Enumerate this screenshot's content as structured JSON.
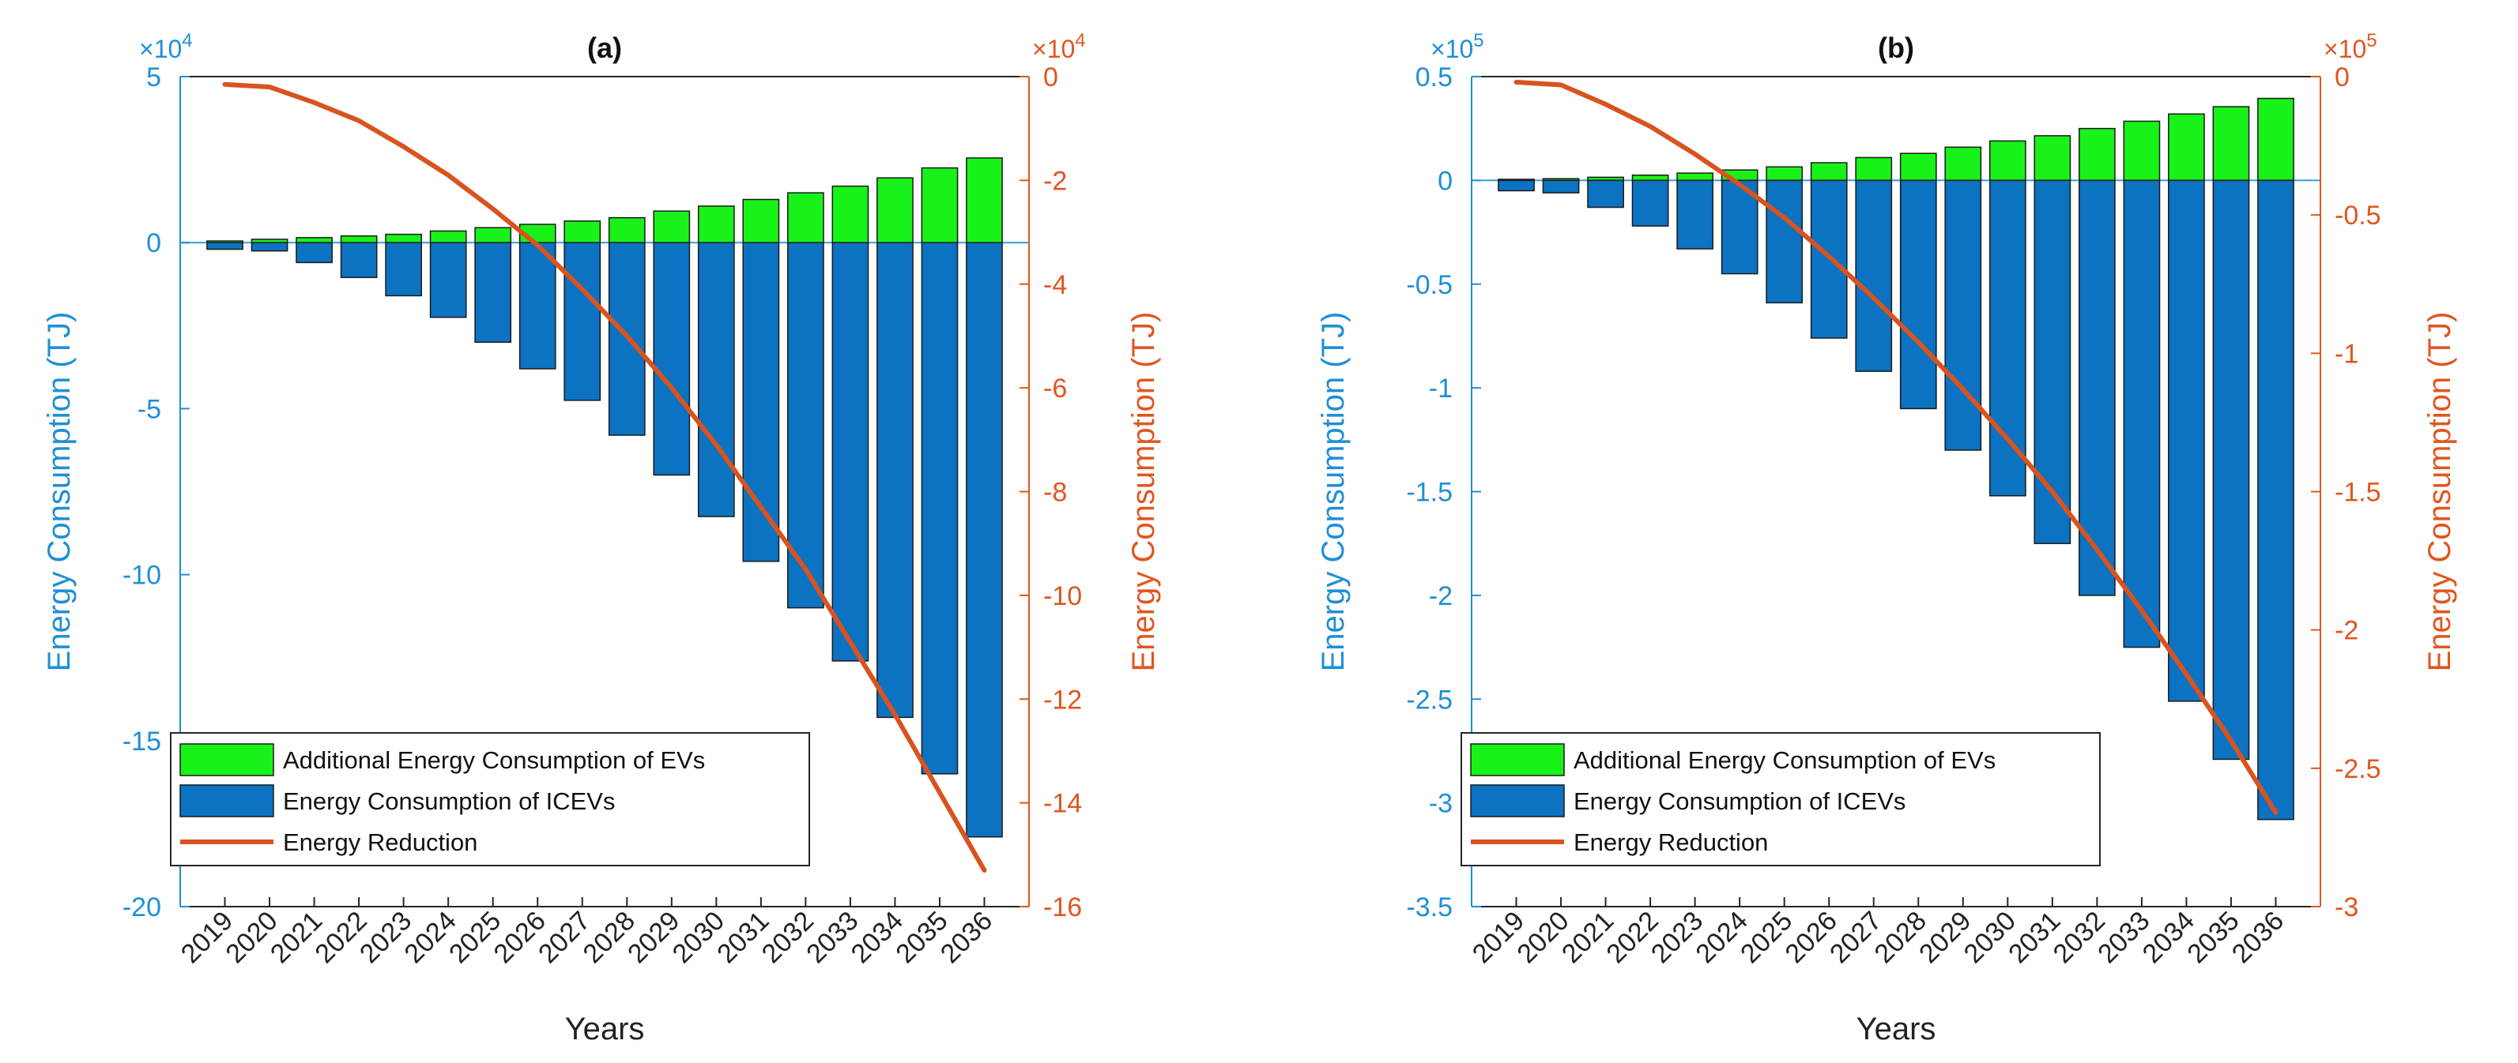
{
  "colors": {
    "left_axis": "#1f8fd6",
    "right_axis": "#e0561f",
    "ev_bar": "#19f219",
    "icev_bar": "#0c72c2",
    "reduction_line": "#d9531e",
    "zero_line": "#3a9ad9",
    "text": "#222222",
    "legend_border": "#262626"
  },
  "chart_data": [
    {
      "type": "bar",
      "title": "(a)",
      "xlabel": "Years",
      "ylabel": "Energy Consumption (TJ)",
      "y2label": "Energy Consumption (TJ)",
      "left_multiplier": "×10",
      "left_exponent": "4",
      "right_multiplier": "×10",
      "right_exponent": "4",
      "categories": [
        "2019",
        "2020",
        "2021",
        "2022",
        "2023",
        "2024",
        "2025",
        "2026",
        "2027",
        "2028",
        "2029",
        "2030",
        "2031",
        "2032",
        "2033",
        "2034",
        "2035",
        "2036"
      ],
      "ylim": [
        -20,
        5
      ],
      "yticks": [
        5,
        0,
        -5,
        -10,
        -15,
        -20
      ],
      "ytick_labels": [
        "5",
        "0",
        "-5",
        "-10",
        "-15",
        "-20"
      ],
      "y2lim": [
        -16,
        0
      ],
      "y2ticks": [
        0,
        -2,
        -4,
        -6,
        -8,
        -10,
        -12,
        -14,
        -16
      ],
      "y2tick_labels": [
        "0",
        "-2",
        "-4",
        "-6",
        "-8",
        "-10",
        "-12",
        "-14",
        "-16"
      ],
      "series": [
        {
          "name": "Additional Energy Consumption of EVs",
          "axis": "left",
          "kind": "bar",
          "values": [
            0.05,
            0.1,
            0.15,
            0.2,
            0.25,
            0.35,
            0.45,
            0.55,
            0.65,
            0.75,
            0.95,
            1.1,
            1.3,
            1.5,
            1.7,
            1.95,
            2.25,
            2.55
          ]
        },
        {
          "name": "Energy Consumption of ICEVs",
          "axis": "left",
          "kind": "bar",
          "values": [
            -0.2,
            -0.25,
            -0.6,
            -1.05,
            -1.6,
            -2.25,
            -3.0,
            -3.8,
            -4.75,
            -5.8,
            -7.0,
            -8.25,
            -9.6,
            -11.0,
            -12.6,
            -14.3,
            -16.0,
            -17.9
          ]
        },
        {
          "name": "Energy Reduction",
          "axis": "right",
          "kind": "line",
          "values": [
            -0.15,
            -0.2,
            -0.5,
            -0.85,
            -1.35,
            -1.9,
            -2.55,
            -3.25,
            -4.1,
            -5.0,
            -6.0,
            -7.1,
            -8.3,
            -9.5,
            -10.9,
            -12.3,
            -13.8,
            -15.3
          ]
        }
      ],
      "legend": [
        "Additional Energy Consumption of EVs",
        "Energy Consumption of ICEVs",
        "Energy Reduction"
      ],
      "legend_position": "bottom-left"
    },
    {
      "type": "bar",
      "title": "(b)",
      "xlabel": "Years",
      "ylabel": "Energy Consumption (TJ)",
      "y2label": "Energy Consumption (TJ)",
      "left_multiplier": "×10",
      "left_exponent": "5",
      "right_multiplier": "×10",
      "right_exponent": "5",
      "categories": [
        "2019",
        "2020",
        "2021",
        "2022",
        "2023",
        "2024",
        "2025",
        "2026",
        "2027",
        "2028",
        "2029",
        "2030",
        "2031",
        "2032",
        "2033",
        "2034",
        "2035",
        "2036"
      ],
      "ylim": [
        -3.5,
        0.5
      ],
      "yticks": [
        0.5,
        0,
        -0.5,
        -1,
        -1.5,
        -2,
        -2.5,
        -3,
        -3.5
      ],
      "ytick_labels": [
        "0.5",
        "0",
        "-0.5",
        "-1",
        "-1.5",
        "-2",
        "-2.5",
        "-3",
        "-3.5"
      ],
      "y2lim": [
        -3,
        0
      ],
      "y2ticks": [
        0,
        -0.5,
        -1,
        -1.5,
        -2,
        -2.5,
        -3
      ],
      "y2tick_labels": [
        "0",
        "-0.5",
        "-1",
        "-1.5",
        "-2",
        "-2.5",
        "-3"
      ],
      "series": [
        {
          "name": "Additional Energy Consumption of EVs",
          "axis": "left",
          "kind": "bar",
          "values": [
            0.005,
            0.008,
            0.015,
            0.025,
            0.035,
            0.05,
            0.065,
            0.085,
            0.11,
            0.13,
            0.16,
            0.19,
            0.215,
            0.25,
            0.285,
            0.32,
            0.355,
            0.395
          ]
        },
        {
          "name": "Energy Consumption of ICEVs",
          "axis": "left",
          "kind": "bar",
          "values": [
            -0.05,
            -0.06,
            -0.13,
            -0.22,
            -0.33,
            -0.45,
            -0.59,
            -0.76,
            -0.92,
            -1.1,
            -1.3,
            -1.52,
            -1.75,
            -2.0,
            -2.25,
            -2.51,
            -2.79,
            -3.08
          ]
        },
        {
          "name": "Energy Reduction",
          "axis": "right",
          "kind": "line",
          "values": [
            -0.02,
            -0.03,
            -0.1,
            -0.18,
            -0.28,
            -0.39,
            -0.51,
            -0.65,
            -0.8,
            -0.96,
            -1.13,
            -1.31,
            -1.5,
            -1.71,
            -1.93,
            -2.16,
            -2.4,
            -2.66
          ]
        }
      ],
      "legend": [
        "Additional Energy Consumption of EVs",
        "Energy Consumption of ICEVs",
        "Energy Reduction"
      ],
      "legend_position": "bottom-left"
    }
  ]
}
